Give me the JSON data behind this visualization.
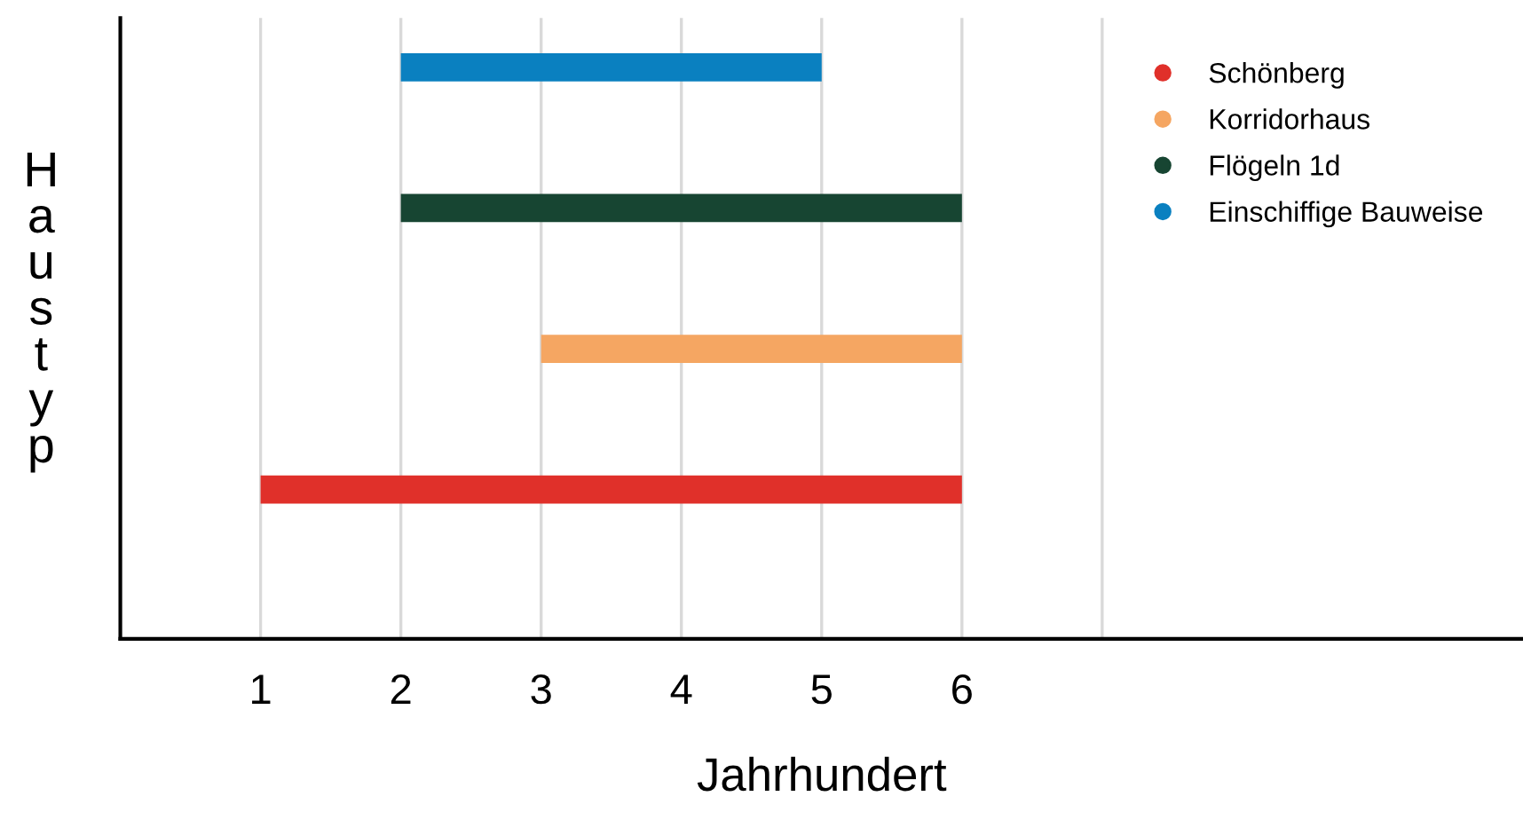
{
  "chart_data": {
    "type": "bar",
    "orientation": "horizontal",
    "xlabel": "Jahrhundert",
    "ylabel": "Haustyp",
    "categories": [
      null,
      null,
      null,
      null
    ],
    "series": [
      {
        "name": "Schönberg",
        "color": "#e0302a",
        "values": [
          null,
          null,
          null,
          5
        ],
        "base": [
          null,
          null,
          null,
          1
        ]
      },
      {
        "name": "Korridorhaus",
        "color": "#f5a662",
        "values": [
          null,
          null,
          3,
          null
        ],
        "base": [
          null,
          null,
          3,
          null
        ]
      },
      {
        "name": "Flögeln 1d",
        "color": "#174532",
        "values": [
          null,
          4,
          null,
          null
        ],
        "base": [
          null,
          2,
          null,
          null
        ]
      },
      {
        "name": "Einschiffige Bauweise",
        "color": "#0a80c0",
        "values": [
          3,
          null,
          null,
          null
        ],
        "base": [
          2,
          null,
          null,
          null
        ]
      }
    ],
    "xlim": [
      0,
      10
    ],
    "xticks": [
      1,
      2,
      3,
      4,
      5,
      6,
      {
        "value": 7,
        "label": null
      }
    ],
    "grid": "x",
    "legend": "top right",
    "marker": "circle",
    "tick_labels": "x"
  }
}
